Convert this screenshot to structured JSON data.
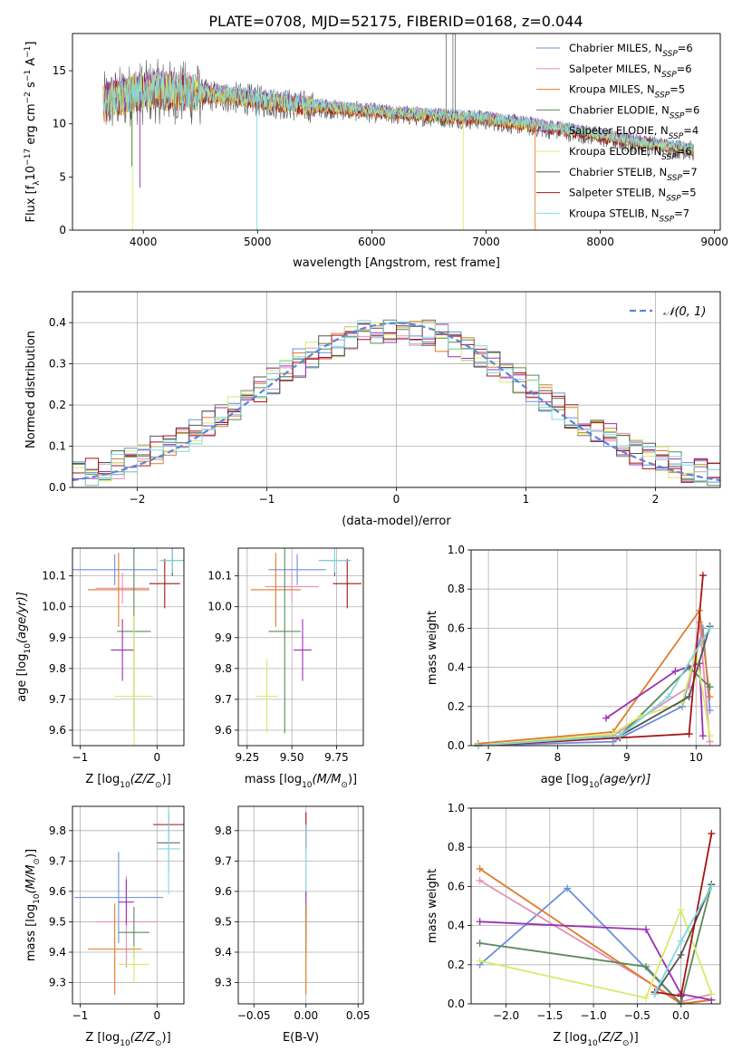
{
  "figure": {
    "title": "PLATE=0708, MJD=52175, FIBERID=0168, z=0.044"
  },
  "colors": {
    "chabrier_miles": "#6a8fdc",
    "salpeter_miles": "#e68fb8",
    "kroupa_miles": "#e07b2a",
    "chabrier_elodie": "#5a8a5a",
    "salpeter_elodie": "#9b30b5",
    "kroupa_elodie": "#d8ea6a",
    "chabrier_stelib": "#555555",
    "salpeter_stelib": "#a31515",
    "kroupa_stelib": "#7fd8e0",
    "gauss": "#5b86d6",
    "grid": "#b0b0b0"
  },
  "chart_data": [
    {
      "type": "line",
      "name": "spectrum",
      "xlabel": "wavelength [Angstrom, rest frame]",
      "ylabel": "Flux [f",
      "ylabel_parts": {
        "sub1": "λ",
        "mid": "10",
        "sup1": "−17",
        "mid2": " erg cm",
        "sup2": "−2",
        "mid3": " s",
        "sup3": "−1",
        "mid4": " A",
        "sup4": "−1",
        "end": "]"
      },
      "xlim": [
        3380,
        9050
      ],
      "ylim": [
        0,
        18.5
      ],
      "xticks": [
        4000,
        5000,
        6000,
        7000,
        8000,
        9000
      ],
      "yticks": [
        0,
        5,
        10,
        15
      ],
      "grid": false,
      "legend_placement": "top-right",
      "series": [
        {
          "key": "chabrier_miles",
          "name": "Chabrier MILES, N",
          "nssp": "=6"
        },
        {
          "key": "salpeter_miles",
          "name": "Salpeter MILES, N",
          "nssp": "=6"
        },
        {
          "key": "kroupa_miles",
          "name": "Kroupa MILES, N",
          "nssp": "=5"
        },
        {
          "key": "chabrier_elodie",
          "name": "Chabrier ELODIE, N",
          "nssp": "=6"
        },
        {
          "key": "salpeter_elodie",
          "name": "Salpeter ELODIE, N",
          "nssp": "=4"
        },
        {
          "key": "kroupa_elodie",
          "name": "Kroupa ELODIE, N",
          "nssp": "=6"
        },
        {
          "key": "chabrier_stelib",
          "name": "Chabrier STELIB, N",
          "nssp": "=7"
        },
        {
          "key": "salpeter_stelib",
          "name": "Salpeter STELIB, N",
          "nssp": "=5"
        },
        {
          "key": "kroupa_stelib",
          "name": "Kroupa STELIB, N",
          "nssp": "=7"
        }
      ],
      "nssp_sub": "SSP",
      "continuum": {
        "x": [
          3650,
          3800,
          3950,
          4100,
          4300,
          4500,
          4800,
          5100,
          5400,
          5800,
          6200,
          6600,
          7000,
          7400,
          7800,
          8200,
          8600,
          8820
        ],
        "y": [
          12.0,
          12.6,
          13.0,
          13.2,
          13.1,
          12.9,
          12.6,
          12.2,
          11.8,
          11.4,
          11.0,
          10.8,
          10.5,
          9.9,
          9.3,
          8.5,
          7.9,
          7.6
        ]
      },
      "dips": [
        {
          "key": "kroupa_elodie",
          "x": 3905,
          "y": 0
        },
        {
          "key": "kroupa_stelib",
          "x": 4995,
          "y": 0
        },
        {
          "key": "kroupa_elodie",
          "x": 6800,
          "y": 0
        },
        {
          "key": "kroupa_miles",
          "x": 7430,
          "y": 0
        },
        {
          "key": "chabrier_elodie",
          "x": 3900,
          "y": 6
        },
        {
          "key": "salpeter_elodie",
          "x": 3970,
          "y": 4
        }
      ]
    },
    {
      "type": "step",
      "name": "residual_histogram",
      "xlabel": "(data-model)/error",
      "ylabel": "Normed distribution",
      "xlim": [
        -2.5,
        2.5
      ],
      "ylim": [
        0,
        0.475
      ],
      "xticks": [
        -2,
        -1,
        0,
        1,
        2
      ],
      "xticklabels": [
        "−2",
        "−1",
        "0",
        "1",
        "2"
      ],
      "yticks": [
        0.0,
        0.1,
        0.2,
        0.3,
        0.4
      ],
      "yticklabels": [
        "0.0",
        "0.1",
        "0.2",
        "0.3",
        "0.4"
      ],
      "grid": true,
      "legend": "𝒩(0, 1)",
      "legend_placement": "top-right",
      "bin_width": 0.1
    },
    {
      "type": "scatter",
      "name": "age_vs_Z",
      "xlabel": "Z [log",
      "xlabel_tail": "(Z/Z",
      "xlabel_end": ")]",
      "ylabel": "age  [log",
      "ylabel_tail": "(age/yr)]",
      "xlim": [
        -1.1,
        0.35
      ],
      "ylim": [
        9.55,
        10.19
      ],
      "xticks": [
        -1,
        0
      ],
      "xticklabels": [
        "−1",
        "0"
      ],
      "yticks": [
        9.6,
        9.7,
        9.8,
        9.9,
        10.0,
        10.1
      ],
      "yticklabels": [
        "9.6",
        "9.7",
        "9.8",
        "9.9",
        "10.0",
        "10.1"
      ],
      "points": [
        {
          "key": "chabrier_miles",
          "x": -0.55,
          "y": 10.12,
          "xerr": 0.55,
          "yerr": 0.05
        },
        {
          "key": "salpeter_miles",
          "x": -0.45,
          "y": 10.06,
          "xerr": 0.35,
          "yerr": 0.05
        },
        {
          "key": "kroupa_miles",
          "x": -0.5,
          "y": 10.055,
          "xerr": 0.4,
          "yerr": 0.12
        },
        {
          "key": "chabrier_elodie",
          "x": -0.3,
          "y": 9.92,
          "xerr": 0.22,
          "yerr": 0.32
        },
        {
          "key": "salpeter_elodie",
          "x": -0.45,
          "y": 9.86,
          "xerr": 0.15,
          "yerr": 0.1
        },
        {
          "key": "kroupa_elodie",
          "x": -0.3,
          "y": 9.71,
          "xerr": 0.25,
          "yerr": 0.26
        },
        {
          "key": "chabrier_stelib",
          "x": 0.2,
          "y": 10.15,
          "xerr": 0.15,
          "yerr": 0.05
        },
        {
          "key": "salpeter_stelib",
          "x": 0.1,
          "y": 10.075,
          "xerr": 0.2,
          "yerr": 0.08
        },
        {
          "key": "kroupa_stelib",
          "x": 0.2,
          "y": 10.15,
          "xerr": 0.17,
          "yerr": 0.04
        }
      ]
    },
    {
      "type": "scatter",
      "name": "age_vs_mass",
      "xlabel": "mass [log",
      "xlabel_tail": "(M/M",
      "xlabel_end": ")]",
      "xlim": [
        9.2,
        9.9
      ],
      "ylim": [
        9.55,
        10.19
      ],
      "xticks": [
        9.25,
        9.5,
        9.75
      ],
      "xticklabels": [
        "9.25",
        "9.50",
        "9.75"
      ],
      "yticks": [
        9.6,
        9.7,
        9.8,
        9.9,
        10.0,
        10.1
      ],
      "yticklabels": [
        "9.6",
        "9.7",
        "9.8",
        "9.9",
        "10.0",
        "10.1"
      ],
      "points": [
        {
          "key": "chabrier_miles",
          "x": 9.53,
          "y": 10.12,
          "xerr": 0.16,
          "yerr": 0.05
        },
        {
          "key": "salpeter_miles",
          "x": 9.5,
          "y": 10.065,
          "xerr": 0.15,
          "yerr": 0.05
        },
        {
          "key": "kroupa_miles",
          "x": 9.41,
          "y": 10.055,
          "xerr": 0.14,
          "yerr": 0.12
        },
        {
          "key": "chabrier_elodie",
          "x": 9.46,
          "y": 9.92,
          "xerr": 0.09,
          "yerr": 0.33
        },
        {
          "key": "salpeter_elodie",
          "x": 9.56,
          "y": 9.86,
          "xerr": 0.05,
          "yerr": 0.1
        },
        {
          "key": "kroupa_elodie",
          "x": 9.36,
          "y": 9.71,
          "xerr": 0.06,
          "yerr": 0.12
        },
        {
          "key": "chabrier_stelib",
          "x": 9.74,
          "y": 10.15,
          "xerr": 0.09,
          "yerr": 0.05
        },
        {
          "key": "salpeter_stelib",
          "x": 9.81,
          "y": 10.075,
          "xerr": 0.08,
          "yerr": 0.08
        },
        {
          "key": "kroupa_stelib",
          "x": 9.74,
          "y": 10.15,
          "xerr": 0.09,
          "yerr": 0.04
        }
      ]
    },
    {
      "type": "line",
      "name": "mass_weight_vs_age",
      "xlabel": "age  [log",
      "xlabel_tail": "(age/yr)]",
      "ylabel": "mass weight",
      "xlim": [
        6.75,
        10.35
      ],
      "ylim": [
        0,
        1.0
      ],
      "xticks": [
        7,
        8,
        9,
        10
      ],
      "xticklabels": [
        "7",
        "8",
        "9",
        "10"
      ],
      "yticks": [
        0.0,
        0.2,
        0.4,
        0.6,
        0.8,
        1.0
      ],
      "yticklabels": [
        "0.0",
        "0.2",
        "0.4",
        "0.6",
        "0.8",
        "1.0"
      ],
      "grid": true,
      "series": [
        {
          "key": "chabrier_miles",
          "x": [
            6.85,
            8.8,
            9.8,
            10.1,
            10.2
          ],
          "y": [
            0.0,
            0.02,
            0.2,
            0.6,
            0.18
          ]
        },
        {
          "key": "salpeter_miles",
          "x": [
            6.85,
            8.8,
            9.9,
            10.05,
            10.2
          ],
          "y": [
            0.0,
            0.05,
            0.3,
            0.63,
            0.02
          ]
        },
        {
          "key": "kroupa_miles",
          "x": [
            6.85,
            8.8,
            10.05,
            10.2
          ],
          "y": [
            0.01,
            0.07,
            0.69,
            0.25
          ]
        },
        {
          "key": "chabrier_elodie",
          "x": [
            6.85,
            8.9,
            9.9,
            10.2
          ],
          "y": [
            0.0,
            0.05,
            0.4,
            0.3
          ]
        },
        {
          "key": "salpeter_elodie",
          "x": [
            8.7,
            9.7,
            10.05,
            10.1
          ],
          "y": [
            0.14,
            0.38,
            0.42,
            0.05
          ]
        },
        {
          "key": "kroupa_elodie",
          "x": [
            6.85,
            8.8,
            9.2,
            9.8,
            10.0,
            10.2
          ],
          "y": [
            0.0,
            0.06,
            0.15,
            0.22,
            0.48,
            0.05
          ]
        },
        {
          "key": "chabrier_stelib",
          "x": [
            6.85,
            8.9,
            9.9,
            10.2
          ],
          "y": [
            0.0,
            0.05,
            0.25,
            0.61
          ]
        },
        {
          "key": "salpeter_stelib",
          "x": [
            6.85,
            8.9,
            9.9,
            10.1
          ],
          "y": [
            0.0,
            0.04,
            0.06,
            0.87
          ]
        },
        {
          "key": "kroupa_stelib",
          "x": [
            6.85,
            8.9,
            9.6,
            10.2
          ],
          "y": [
            0.0,
            0.05,
            0.25,
            0.6
          ]
        }
      ]
    },
    {
      "type": "scatter",
      "name": "mass_vs_Z",
      "xlabel": "Z [log",
      "xlabel_tail": "(Z/Z",
      "xlabel_end": ")]",
      "ylabel": "mass [log",
      "ylabel_tail": "(M/M",
      "ylabel_end": ")]",
      "xlim": [
        -1.1,
        0.35
      ],
      "ylim": [
        9.23,
        9.88
      ],
      "xticks": [
        -1,
        0
      ],
      "xticklabels": [
        "−1",
        "0"
      ],
      "yticks": [
        9.3,
        9.4,
        9.5,
        9.6,
        9.7,
        9.8
      ],
      "yticklabels": [
        "9.3",
        "9.4",
        "9.5",
        "9.6",
        "9.7",
        "9.8"
      ],
      "points": [
        {
          "key": "chabrier_miles",
          "x": -0.5,
          "y": 9.58,
          "xerr": 0.58,
          "yerr": 0.15
        },
        {
          "key": "salpeter_miles",
          "x": -0.4,
          "y": 9.5,
          "xerr": 0.4,
          "yerr": 0.15
        },
        {
          "key": "kroupa_miles",
          "x": -0.55,
          "y": 9.41,
          "xerr": 0.35,
          "yerr": 0.15
        },
        {
          "key": "chabrier_elodie",
          "x": -0.3,
          "y": 9.465,
          "xerr": 0.2,
          "yerr": 0.085
        },
        {
          "key": "salpeter_elodie",
          "x": -0.4,
          "y": 9.565,
          "xerr": 0.1,
          "yerr": 0.075
        },
        {
          "key": "kroupa_elodie",
          "x": -0.3,
          "y": 9.36,
          "xerr": 0.2,
          "yerr": 0.06
        },
        {
          "key": "chabrier_stelib",
          "x": 0.15,
          "y": 9.76,
          "xerr": 0.15,
          "yerr": 0.1
        },
        {
          "key": "salpeter_stelib",
          "x": 0.15,
          "y": 9.82,
          "xerr": 0.2,
          "yerr": 0.05
        },
        {
          "key": "kroupa_stelib",
          "x": 0.15,
          "y": 9.74,
          "xerr": 0.15,
          "yerr": 0.15
        }
      ]
    },
    {
      "type": "scatter",
      "name": "mass_vs_ebv",
      "xlabel": "E(B-V)",
      "xlim": [
        -0.065,
        0.055
      ],
      "ylim": [
        9.23,
        9.88
      ],
      "xticks": [
        -0.05,
        0.0,
        0.05
      ],
      "xticklabels": [
        "−0.05",
        "0.00",
        "0.05"
      ],
      "yticks": [
        9.3,
        9.4,
        9.5,
        9.6,
        9.7,
        9.8
      ],
      "yticklabels": [
        "9.3",
        "9.4",
        "9.5",
        "9.6",
        "9.7",
        "9.8"
      ],
      "points": [
        {
          "key": "salpeter_stelib",
          "x": 0.0,
          "y": 9.8,
          "xerr": 0,
          "yerr": 0.06
        },
        {
          "key": "kroupa_stelib",
          "x": 0.0,
          "y": 9.7,
          "xerr": 0,
          "yerr": 0.12
        },
        {
          "key": "salpeter_elodie",
          "x": 0.0,
          "y": 9.56,
          "xerr": 0,
          "yerr": 0.04
        },
        {
          "key": "chabrier_elodie",
          "x": 0.0,
          "y": 9.47,
          "xerr": 0,
          "yerr": 0.08
        },
        {
          "key": "kroupa_elodie",
          "x": 0.0,
          "y": 9.36,
          "xerr": 0,
          "yerr": 0.07
        },
        {
          "key": "kroupa_miles",
          "x": 0.0,
          "y": 9.41,
          "xerr": 0,
          "yerr": 0.15
        }
      ]
    },
    {
      "type": "line",
      "name": "mass_weight_vs_Z",
      "xlabel": "Z [log",
      "xlabel_tail": "(Z/Z",
      "xlabel_end": ")]",
      "ylabel": "mass weight",
      "xlim": [
        -2.4,
        0.45
      ],
      "ylim": [
        0,
        1.0
      ],
      "xticks": [
        -2.0,
        -1.5,
        -1.0,
        -0.5,
        0.0
      ],
      "xticklabels": [
        "−2.0",
        "−1.5",
        "−1.0",
        "−0.5",
        "0.0"
      ],
      "yticks": [
        0.0,
        0.2,
        0.4,
        0.6,
        0.8,
        1.0
      ],
      "yticklabels": [
        "0.0",
        "0.2",
        "0.4",
        "0.6",
        "0.8",
        "1.0"
      ],
      "grid": true,
      "series": [
        {
          "key": "chabrier_miles",
          "x": [
            -2.3,
            -1.3,
            0.0,
            0.35
          ],
          "y": [
            0.2,
            0.59,
            0.0,
            0.02
          ]
        },
        {
          "key": "salpeter_miles",
          "x": [
            -2.3,
            0.0,
            0.35
          ],
          "y": [
            0.63,
            0.01,
            0.05
          ]
        },
        {
          "key": "kroupa_miles",
          "x": [
            -2.3,
            0.0,
            0.35
          ],
          "y": [
            0.69,
            0.0,
            0.02
          ]
        },
        {
          "key": "chabrier_elodie",
          "x": [
            -2.3,
            -0.4,
            0.0,
            0.35
          ],
          "y": [
            0.31,
            0.19,
            0.0,
            0.61
          ]
        },
        {
          "key": "salpeter_elodie",
          "x": [
            -2.3,
            -0.4,
            0.0,
            0.35
          ],
          "y": [
            0.42,
            0.38,
            0.05,
            0.02
          ]
        },
        {
          "key": "kroupa_elodie",
          "x": [
            -2.3,
            -0.4,
            0.0,
            0.35
          ],
          "y": [
            0.22,
            0.03,
            0.48,
            0.05
          ]
        },
        {
          "key": "chabrier_stelib",
          "x": [
            -0.3,
            0.0,
            0.35
          ],
          "y": [
            0.05,
            0.25,
            0.61
          ]
        },
        {
          "key": "salpeter_stelib",
          "x": [
            -0.3,
            0.0,
            0.35
          ],
          "y": [
            0.06,
            0.04,
            0.87
          ]
        },
        {
          "key": "kroupa_stelib",
          "x": [
            -0.3,
            0.0,
            0.35
          ],
          "y": [
            0.05,
            0.32,
            0.6
          ]
        }
      ]
    }
  ]
}
